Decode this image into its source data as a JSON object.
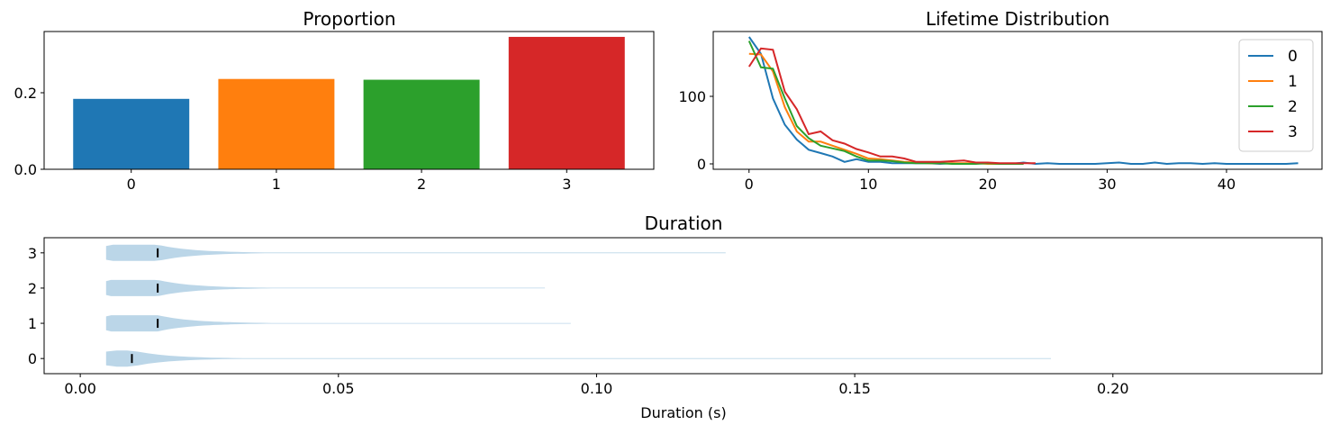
{
  "colors": {
    "series": [
      "#1f77b4",
      "#ff7f0e",
      "#2ca02c",
      "#d62728"
    ],
    "violin": "#1f77b4"
  },
  "chart_data": [
    {
      "type": "bar",
      "title": "Proportion",
      "categories": [
        "0",
        "1",
        "2",
        "3"
      ],
      "values": [
        0.184,
        0.236,
        0.234,
        0.346
      ],
      "ylim": [
        0,
        0.36
      ],
      "yticks": [
        0.0,
        0.2
      ],
      "ytick_labels": [
        "0.0",
        "0.2"
      ],
      "xlabel": "",
      "ylabel": ""
    },
    {
      "type": "line",
      "title": "Lifetime Distribution",
      "xlim": [
        -3,
        48
      ],
      "ylim": [
        -8,
        196
      ],
      "xticks": [
        0,
        10,
        20,
        30,
        40
      ],
      "xtick_labels": [
        "0",
        "10",
        "20",
        "30",
        "40"
      ],
      "yticks": [
        0,
        100
      ],
      "ytick_labels": [
        "0",
        "100"
      ],
      "legend_position": "top-right",
      "series": [
        {
          "name": "0",
          "x": [
            0,
            1,
            2,
            3,
            4,
            5,
            6,
            7,
            8,
            9,
            10,
            11,
            12,
            13,
            14,
            15,
            16,
            17,
            18,
            19,
            20,
            21,
            22,
            23,
            24,
            25,
            26,
            27,
            28,
            29,
            30,
            31,
            32,
            33,
            34,
            35,
            36,
            37,
            38,
            39,
            40,
            41,
            42,
            43,
            44,
            45,
            46
          ],
          "values": [
            188,
            163,
            97,
            58,
            36,
            21,
            16,
            11,
            3,
            7,
            3,
            3,
            1,
            1,
            1,
            1,
            0,
            1,
            0,
            1,
            1,
            0,
            0,
            2,
            0,
            1,
            0,
            0,
            0,
            0,
            1,
            2,
            0,
            0,
            2,
            0,
            1,
            1,
            0,
            1,
            0,
            0,
            0,
            0,
            0,
            0,
            1
          ]
        },
        {
          "name": "1",
          "x": [
            0,
            1,
            2,
            3,
            4,
            5,
            6,
            7,
            8,
            9,
            10,
            11,
            12,
            13,
            14,
            15,
            16,
            17,
            18,
            19,
            20,
            21,
            22,
            23
          ],
          "values": [
            163,
            162,
            137,
            84,
            48,
            33,
            33,
            27,
            21,
            15,
            8,
            7,
            5,
            3,
            2,
            1,
            1,
            1,
            1,
            1,
            0,
            0,
            0,
            0
          ]
        },
        {
          "name": "2",
          "x": [
            0,
            1,
            2,
            3,
            4,
            5,
            6,
            7,
            8,
            9,
            10,
            11,
            12,
            13,
            14,
            15,
            16,
            17,
            18,
            19,
            20,
            21,
            22,
            23
          ],
          "values": [
            182,
            143,
            141,
            97,
            56,
            38,
            27,
            23,
            19,
            11,
            5,
            5,
            4,
            2,
            1,
            1,
            1,
            0,
            0,
            0,
            1,
            0,
            0,
            0
          ]
        },
        {
          "name": "3",
          "x": [
            0,
            1,
            2,
            3,
            4,
            5,
            6,
            7,
            8,
            9,
            10,
            11,
            12,
            13,
            14,
            15,
            16,
            17,
            18,
            19,
            20,
            21,
            22,
            23,
            24
          ],
          "values": [
            144,
            171,
            169,
            107,
            81,
            44,
            48,
            35,
            30,
            22,
            17,
            11,
            11,
            8,
            3,
            3,
            3,
            4,
            5,
            2,
            2,
            1,
            1,
            1,
            1
          ]
        }
      ]
    },
    {
      "type": "violin",
      "title": "Duration",
      "xlabel": "Duration (s)",
      "categories": [
        "0",
        "1",
        "2",
        "3"
      ],
      "xlim": [
        -0.007,
        0.2405
      ],
      "xticks": [
        0.0,
        0.05,
        0.1,
        0.15,
        0.2
      ],
      "xtick_labels": [
        "0.00",
        "0.05",
        "0.10",
        "0.15",
        "0.20"
      ],
      "yticks": [
        0,
        1,
        2,
        3
      ],
      "ytick_labels": [
        "0",
        "1",
        "2",
        "3"
      ],
      "series": [
        {
          "name": "0",
          "min": 0.005,
          "max": 0.188,
          "median": 0.01
        },
        {
          "name": "1",
          "min": 0.005,
          "max": 0.095,
          "median": 0.015
        },
        {
          "name": "2",
          "min": 0.005,
          "max": 0.09,
          "median": 0.015
        },
        {
          "name": "3",
          "min": 0.005,
          "max": 0.125,
          "median": 0.015
        }
      ]
    }
  ]
}
